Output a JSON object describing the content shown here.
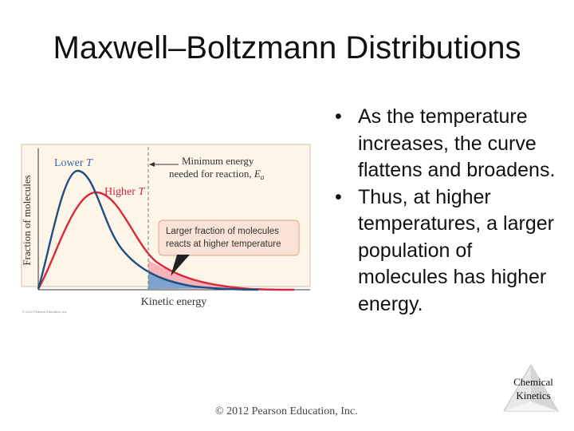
{
  "slide": {
    "title": "Maxwell–Boltzmann Distributions",
    "bullets": [
      "As the temperature increases, the curve flattens and broadens.",
      "Thus, at higher temperatures, a larger population of molecules has higher energy."
    ],
    "bullet_symbol": "•",
    "copyright": "© 2012 Pearson Education, Inc.",
    "corner_label_line1": "Chemical",
    "corner_label_line2": "Kinetics"
  },
  "figure": {
    "y_axis_label": "Fraction of molecules",
    "x_axis_label": "Kinetic energy",
    "lower_t_label": "Lower ",
    "lower_t_var": "T",
    "higher_t_label": "Higher ",
    "higher_t_var": "T",
    "min_energy_line1": "Minimum energy",
    "min_energy_line2": "needed for reaction, ",
    "min_energy_var": "E",
    "min_energy_sub": "a",
    "callout_line1": "Larger fraction of molecules",
    "callout_line2": "reacts at higher temperature",
    "fig_copyright": "© 2012 Pearson Education, Inc.",
    "colors": {
      "background": "#fdf5e8",
      "lower_curve": "#1e4f82",
      "higher_curve": "#d8283c",
      "callout_bg": "#f9e3d6",
      "callout_border": "#e8a085",
      "label_lower": "#3b67a8",
      "label_higher": "#d0283c"
    }
  }
}
